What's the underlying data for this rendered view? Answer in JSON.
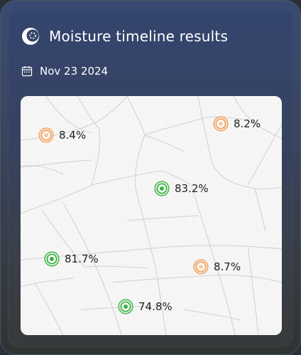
{
  "header": {
    "title": "Moisture timeline results",
    "logo_icon": "crescent-logo-icon"
  },
  "date": {
    "icon": "calendar-icon",
    "text": "Nov 23 2024"
  },
  "colors": {
    "high": "#3cb043",
    "low": "#f0a060"
  },
  "markers": [
    {
      "label": "8.4%",
      "level": "low"
    },
    {
      "label": "8.2%",
      "level": "low"
    },
    {
      "label": "83.2%",
      "level": "high"
    },
    {
      "label": "81.7%",
      "level": "high"
    },
    {
      "label": "8.7%",
      "level": "low"
    },
    {
      "label": "74.8%",
      "level": "high"
    }
  ]
}
